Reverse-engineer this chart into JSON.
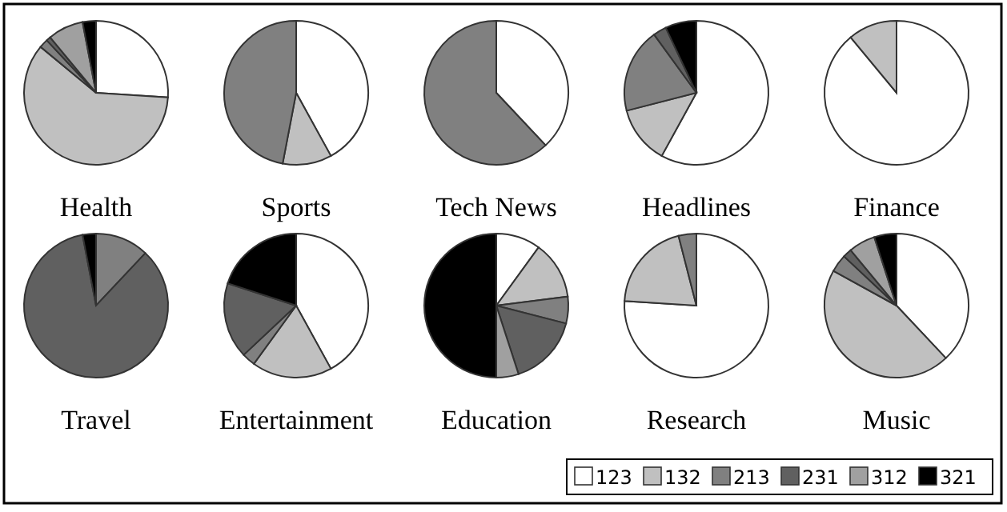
{
  "chart_data": [
    {
      "type": "pie",
      "title": "Health",
      "categories": [
        "123",
        "132",
        "213",
        "231",
        "312",
        "321"
      ],
      "values": [
        26,
        60,
        2,
        1,
        8,
        3
      ],
      "colors": [
        "#ffffff",
        "#c0c0c0",
        "#808080",
        "#606060",
        "#a0a0a0",
        "#000000"
      ],
      "legend": "bottom right"
    },
    {
      "type": "pie",
      "title": "Sports",
      "categories": [
        null,
        null,
        null
      ],
      "values": [
        42,
        11,
        47
      ],
      "colors": [
        "#ffffff",
        "#c0c0c0",
        "#808080"
      ]
    },
    {
      "type": "pie",
      "title": "Tech News",
      "categories": [
        null,
        null
      ],
      "values": [
        38,
        62
      ],
      "colors": [
        "#ffffff",
        "#808080"
      ]
    },
    {
      "type": "pie",
      "title": "Headlines",
      "categories": [
        null,
        null,
        null,
        null,
        null
      ],
      "values": [
        58,
        13,
        19,
        3,
        7
      ],
      "colors": [
        "#ffffff",
        "#c0c0c0",
        "#808080",
        "#606060",
        "#000000"
      ]
    },
    {
      "type": "pie",
      "title": "Finance",
      "categories": [
        null,
        null
      ],
      "values": [
        89,
        11
      ],
      "colors": [
        "#ffffff",
        "#c0c0c0"
      ]
    },
    {
      "type": "pie",
      "title": "Travel",
      "categories": [
        null,
        null,
        null
      ],
      "values": [
        12,
        85,
        3
      ],
      "colors": [
        "#808080",
        "#606060",
        "#000000"
      ]
    },
    {
      "type": "pie",
      "title": "Entertainment",
      "categories": [
        null,
        null,
        null,
        null,
        null
      ],
      "values": [
        42,
        18,
        3,
        17,
        20
      ],
      "colors": [
        "#ffffff",
        "#c0c0c0",
        "#808080",
        "#606060",
        "#000000"
      ]
    },
    {
      "type": "pie",
      "title": "Education",
      "categories": [
        null,
        null,
        null,
        null,
        null,
        null
      ],
      "values": [
        10,
        13,
        6,
        16,
        5,
        50
      ],
      "colors": [
        "#ffffff",
        "#c0c0c0",
        "#808080",
        "#606060",
        "#a0a0a0",
        "#000000"
      ]
    },
    {
      "type": "pie",
      "title": "Research",
      "categories": [
        null,
        null,
        null
      ],
      "values": [
        76,
        20,
        4
      ],
      "colors": [
        "#ffffff",
        "#c0c0c0",
        "#808080"
      ]
    },
    {
      "type": "pie",
      "title": "Music",
      "categories": [
        null,
        null,
        null,
        null,
        null,
        null
      ],
      "values": [
        38,
        45,
        4,
        2,
        6,
        5
      ],
      "colors": [
        "#ffffff",
        "#c0c0c0",
        "#808080",
        "#606060",
        "#a0a0a0",
        "#000000"
      ]
    }
  ]
}
